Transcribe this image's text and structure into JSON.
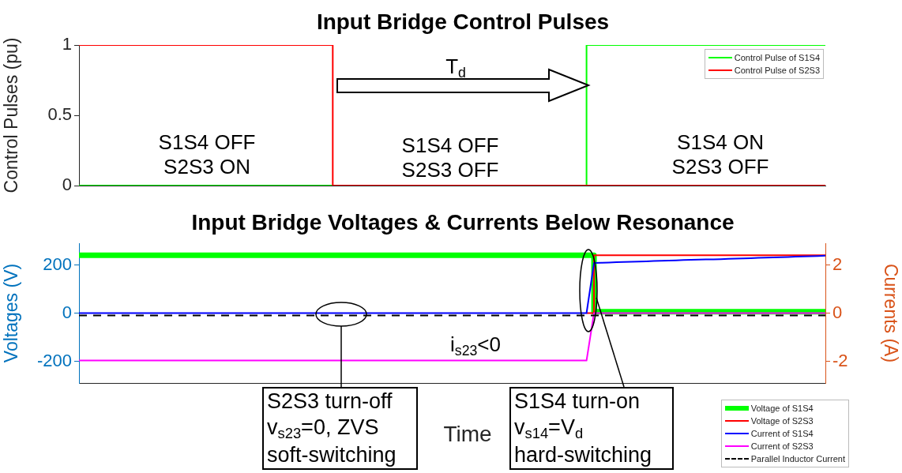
{
  "chart_data": [
    {
      "type": "step",
      "title": "Input Bridge Control Pulses",
      "ylabel": "Control Pulses (pu)",
      "categories": [
        null,
        null,
        null,
        null,
        null,
        null,
        null,
        null,
        null,
        null,
        null,
        null,
        null,
        null,
        null,
        null,
        null,
        null,
        null,
        null,
        null,
        null,
        null,
        null,
        null,
        null,
        null,
        null,
        null,
        null,
        null,
        null,
        null,
        null,
        null,
        null,
        null,
        null,
        null,
        null,
        null,
        null,
        null,
        null,
        null,
        null,
        null,
        null,
        null,
        null,
        null
      ],
      "ylim": [
        0,
        1
      ],
      "yticks": [
        0,
        0.5,
        1
      ],
      "tick_labels": "y",
      "grid": false,
      "legend": "top right",
      "marker": "none",
      "series": [
        {
          "name": "Control Pulse of S1S4",
          "color": "#00ff00",
          "values": [
            0,
            0,
            0,
            0,
            0,
            0,
            0,
            0,
            0,
            0,
            0,
            0,
            0,
            0,
            0,
            0,
            0,
            0,
            0,
            0,
            0,
            0,
            0,
            0,
            0,
            0,
            0,
            0,
            0,
            0,
            0,
            0,
            0,
            0,
            1,
            1,
            1,
            1,
            1,
            1,
            1,
            1,
            1,
            1,
            1,
            1,
            1,
            1,
            1,
            1,
            1
          ]
        },
        {
          "name": "Control Pulse of S2S3",
          "color": "#ff0000",
          "values": [
            1,
            1,
            1,
            1,
            1,
            1,
            1,
            1,
            1,
            1,
            1,
            1,
            1,
            1,
            1,
            1,
            1,
            0,
            0,
            0,
            0,
            0,
            0,
            0,
            0,
            0,
            0,
            0,
            0,
            0,
            0,
            0,
            0,
            0,
            0,
            0,
            0,
            0,
            0,
            0,
            0,
            0,
            0,
            0,
            0,
            0,
            0,
            0,
            0,
            0,
            0
          ]
        }
      ],
      "annotations": [
        "T$_{d}$",
        "S1S4 OFF\nS2S3 ON",
        "S1S4 OFF\nS2S3 OFF",
        "S1S4 ON\nS2S3 OFF"
      ]
    },
    {
      "type": "line",
      "title": "Input Bridge Voltages & Currents Below Resonance",
      "xlabel": "Time",
      "ylabel": "Voltages (V)",
      "y2label": "Currents (A)",
      "categories": [
        null,
        null,
        null,
        null,
        null,
        null,
        null,
        null,
        null,
        null,
        null,
        null,
        null,
        null,
        null,
        null,
        null,
        null,
        null,
        null,
        null,
        null,
        null,
        null,
        null,
        null,
        null,
        null,
        null,
        null,
        null,
        null,
        null,
        null,
        null,
        null,
        null,
        null,
        null,
        null,
        null,
        null,
        null,
        null,
        null,
        null,
        null,
        null,
        null,
        null,
        null,
        null,
        null,
        null,
        null,
        null,
        null,
        null,
        null,
        null,
        null,
        null,
        null,
        null,
        null,
        null,
        null,
        null,
        null,
        null,
        null,
        null,
        null,
        null,
        null,
        null,
        null,
        null,
        null,
        null,
        null,
        null,
        null,
        null,
        null,
        null,
        null,
        null,
        null,
        null,
        null,
        null,
        null,
        null,
        null,
        null,
        null,
        null,
        null,
        null,
        null
      ],
      "ylim": [
        -290,
        290
      ],
      "yticks": [
        -200,
        0,
        200
      ],
      "y2lim": [
        -2.9,
        2.9
      ],
      "y2ticks": [
        -2,
        0,
        2
      ],
      "tick_labels": "y",
      "grid": false,
      "legend": "bottom right",
      "marker": "none",
      "series": [
        {
          "name": "Voltage of S1S4",
          "type": "step",
          "color": "#00ff00",
          "values": [
            240,
            240,
            240,
            240,
            240,
            240,
            240,
            240,
            240,
            240,
            240,
            240,
            240,
            240,
            240,
            240,
            240,
            240,
            240,
            240,
            240,
            240,
            240,
            240,
            240,
            240,
            240,
            240,
            240,
            240,
            240,
            240,
            240,
            240,
            240,
            240,
            240,
            240,
            240,
            240,
            240,
            240,
            240,
            240,
            240,
            240,
            240,
            240,
            240,
            240,
            240,
            240,
            240,
            240,
            240,
            240,
            240,
            240,
            240,
            240,
            240,
            240,
            240,
            240,
            240,
            240,
            240,
            240,
            240,
            6,
            6,
            6,
            6,
            6,
            6,
            6,
            6,
            6,
            6,
            6,
            6,
            6,
            6,
            6,
            6,
            6,
            6,
            6,
            6,
            6,
            6,
            6,
            6,
            6,
            6,
            6,
            6,
            6,
            6,
            6,
            6
          ]
        },
        {
          "name": "Voltage of S2S3",
          "type": "step",
          "color": "#ff0000",
          "values": [
            null,
            null,
            null,
            null,
            null,
            null,
            null,
            null,
            null,
            null,
            null,
            null,
            null,
            null,
            null,
            null,
            null,
            null,
            null,
            null,
            null,
            null,
            null,
            null,
            null,
            null,
            null,
            null,
            null,
            null,
            null,
            null,
            null,
            null,
            null,
            null,
            null,
            null,
            null,
            null,
            null,
            null,
            null,
            null,
            null,
            null,
            null,
            null,
            null,
            null,
            null,
            null,
            null,
            null,
            null,
            null,
            null,
            null,
            null,
            null,
            null,
            null,
            null,
            null,
            null,
            null,
            null,
            null,
            0,
            240,
            240,
            240,
            240,
            240,
            240,
            240,
            240,
            240,
            240,
            240,
            240,
            240,
            240,
            240,
            240,
            240,
            240,
            240,
            240,
            240,
            240,
            240,
            240,
            240,
            240,
            240,
            240,
            240,
            240,
            240,
            240
          ]
        },
        {
          "name": "Current of S1S4",
          "axis": "y2",
          "color": "#0000ff",
          "values": [
            0,
            0,
            0,
            0,
            0,
            0,
            0,
            0,
            0,
            0,
            0,
            0,
            0,
            0,
            0,
            0,
            0,
            0,
            0,
            0,
            0,
            0,
            0,
            0,
            0,
            0,
            0,
            0,
            0,
            0,
            0,
            0,
            0,
            0,
            0,
            0,
            0,
            0,
            0,
            0,
            0,
            0,
            0,
            0,
            0,
            0,
            0,
            0,
            0,
            0,
            0,
            0,
            0,
            0,
            0,
            0,
            0,
            0,
            0,
            0,
            0,
            0,
            0,
            0,
            0,
            0,
            0,
            0,
            0,
            2.08,
            2.09,
            2.1,
            2.11,
            2.12,
            2.13,
            2.14,
            2.15,
            2.16,
            2.17,
            2.18,
            2.19,
            2.2,
            2.21,
            2.22,
            2.23,
            2.23,
            2.24,
            2.25,
            2.26,
            2.27,
            2.28,
            2.29,
            2.3,
            2.31,
            2.32,
            2.33,
            2.34,
            2.35,
            2.36,
            2.37,
            2.38
          ]
        },
        {
          "name": "Current of S2S3",
          "axis": "y2",
          "color": "#ff00ff",
          "values": [
            -1.97,
            -1.97,
            -1.97,
            -1.97,
            -1.97,
            -1.97,
            -1.97,
            -1.97,
            -1.97,
            -1.97,
            -1.97,
            -1.97,
            -1.97,
            -1.97,
            -1.97,
            -1.97,
            -1.97,
            -1.97,
            -1.97,
            -1.97,
            -1.97,
            -1.97,
            -1.97,
            -1.97,
            -1.97,
            -1.97,
            -1.97,
            -1.97,
            -1.97,
            -1.97,
            -1.97,
            -1.97,
            -1.97,
            -1.97,
            -1.97,
            -1.97,
            -1.97,
            -1.97,
            -1.97,
            -1.97,
            -1.97,
            -1.97,
            -1.97,
            -1.97,
            -1.97,
            -1.97,
            -1.97,
            -1.97,
            -1.97,
            -1.97,
            -1.97,
            -1.97,
            -1.97,
            -1.97,
            -1.97,
            -1.97,
            -1.97,
            -1.97,
            -1.97,
            -1.97,
            -1.97,
            -1.97,
            -1.97,
            -1.97,
            -1.97,
            -1.97,
            -1.97,
            -1.97,
            -1.97,
            0,
            0,
            0,
            0,
            0,
            0,
            0,
            0,
            0,
            0,
            0,
            0,
            0,
            0,
            0,
            0,
            0,
            0,
            0,
            0,
            0,
            0,
            0,
            0,
            0,
            0,
            0,
            0,
            0,
            0,
            0,
            0
          ]
        },
        {
          "name": "Parallel Inductor Current",
          "axis": "y2",
          "color": "#000000",
          "line_style": "dashed",
          "values": [
            -0.1,
            -0.1,
            -0.1,
            -0.1,
            -0.1,
            -0.1,
            -0.1,
            -0.1,
            -0.1,
            -0.1,
            -0.1,
            -0.1,
            -0.1,
            -0.1,
            -0.1,
            -0.1,
            -0.1,
            -0.1,
            -0.1,
            -0.1,
            -0.1,
            -0.1,
            -0.1,
            -0.1,
            -0.1,
            -0.1,
            -0.1,
            -0.1,
            -0.1,
            -0.1,
            -0.1,
            -0.1,
            -0.1,
            -0.1,
            -0.1,
            -0.1,
            -0.1,
            -0.1,
            -0.1,
            -0.1,
            -0.1,
            -0.1,
            -0.1,
            -0.1,
            -0.1,
            -0.1,
            -0.1,
            -0.1,
            -0.1,
            -0.1,
            -0.1,
            -0.1,
            -0.1,
            -0.1,
            -0.1,
            -0.1,
            -0.1,
            -0.1,
            -0.1,
            -0.1,
            -0.1,
            -0.1,
            -0.1,
            -0.1,
            -0.1,
            -0.1,
            -0.1,
            -0.1,
            -0.1,
            -0.1,
            -0.1,
            -0.1,
            -0.1,
            -0.1,
            -0.1,
            -0.1,
            -0.1,
            -0.1,
            -0.1,
            -0.1,
            -0.1,
            -0.1,
            -0.1,
            -0.1,
            -0.1,
            -0.1,
            -0.1,
            -0.1,
            -0.1,
            -0.1,
            -0.1,
            -0.1,
            -0.1,
            -0.1,
            -0.1,
            -0.1,
            -0.1,
            -0.1,
            -0.1,
            -0.1,
            -0.1
          ]
        }
      ],
      "annotations": [
        "i$_{s23}$<0",
        "S2S3 turn-off\nv$_{s23}$=0, ZVS\nsoft-switching",
        "S1S4 turn-on\nv$_{s14}$=V$_{d}$\nhard-switching"
      ]
    }
  ]
}
